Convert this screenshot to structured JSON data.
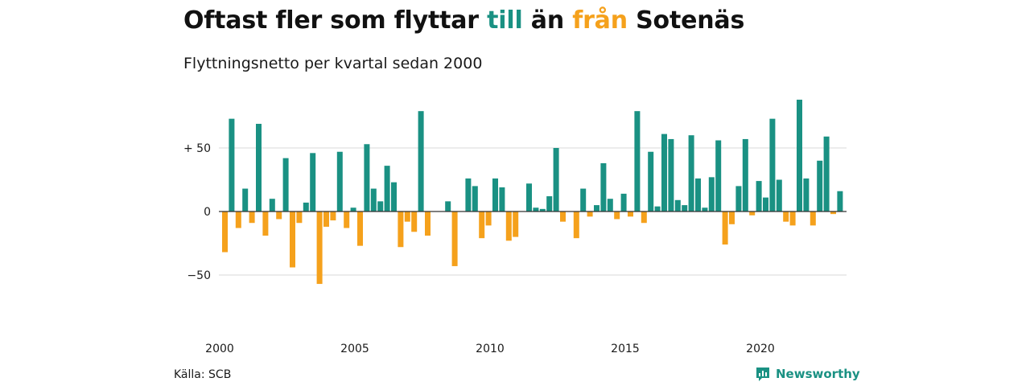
{
  "title": {
    "part1": "Oftast fler som flyttar ",
    "highlight_to": "till",
    "part2": " än ",
    "highlight_from": "från",
    "part3": " Sotenäs"
  },
  "subtitle": "Flyttningsnetto per kvartal sedan 2000",
  "source": "Källa: SCB",
  "brand": "Newsworthy",
  "colors": {
    "positive": "#1a9183",
    "negative": "#f5a11c",
    "grid": "#d9d9d9",
    "zero_line": "#333333"
  },
  "chart_data": {
    "type": "bar",
    "title": "Oftast fler som flyttar till än från Sotenäs",
    "subtitle": "Flyttningsnetto per kvartal sedan 2000",
    "xlabel": "",
    "ylabel": "",
    "ylim": [
      -80,
      90
    ],
    "grid": true,
    "y_ticks": [
      {
        "value": 50,
        "label": "+ 50"
      },
      {
        "value": 0,
        "label": "0"
      },
      {
        "value": -50,
        "label": "−50"
      }
    ],
    "x_tick_labels": [
      "2000",
      "2005",
      "2010",
      "2015",
      "2020"
    ],
    "first_quarter": "2000 Q1",
    "last_quarter": "2023 Q1",
    "values": [
      -32,
      73,
      -13,
      18,
      -9,
      69,
      -19,
      10,
      -6,
      42,
      -44,
      -9,
      7,
      46,
      -57,
      -12,
      -7,
      47,
      -13,
      3,
      -27,
      53,
      18,
      8,
      36,
      23,
      -28,
      -8,
      -16,
      79,
      -19,
      0,
      0,
      8,
      -43,
      0,
      26,
      20,
      -21,
      -11,
      26,
      19,
      -23,
      -20,
      0,
      22,
      3,
      2,
      12,
      50,
      -8,
      0,
      -21,
      18,
      -4,
      5,
      38,
      10,
      -6,
      14,
      -4,
      79,
      -9,
      47,
      4,
      61,
      57,
      9,
      5,
      60,
      26,
      3,
      27,
      56,
      -26,
      -10,
      20,
      57,
      -3,
      24,
      11,
      73,
      25,
      -8,
      -11,
      88,
      26,
      -11,
      40,
      59,
      -2,
      16,
      0
    ]
  }
}
